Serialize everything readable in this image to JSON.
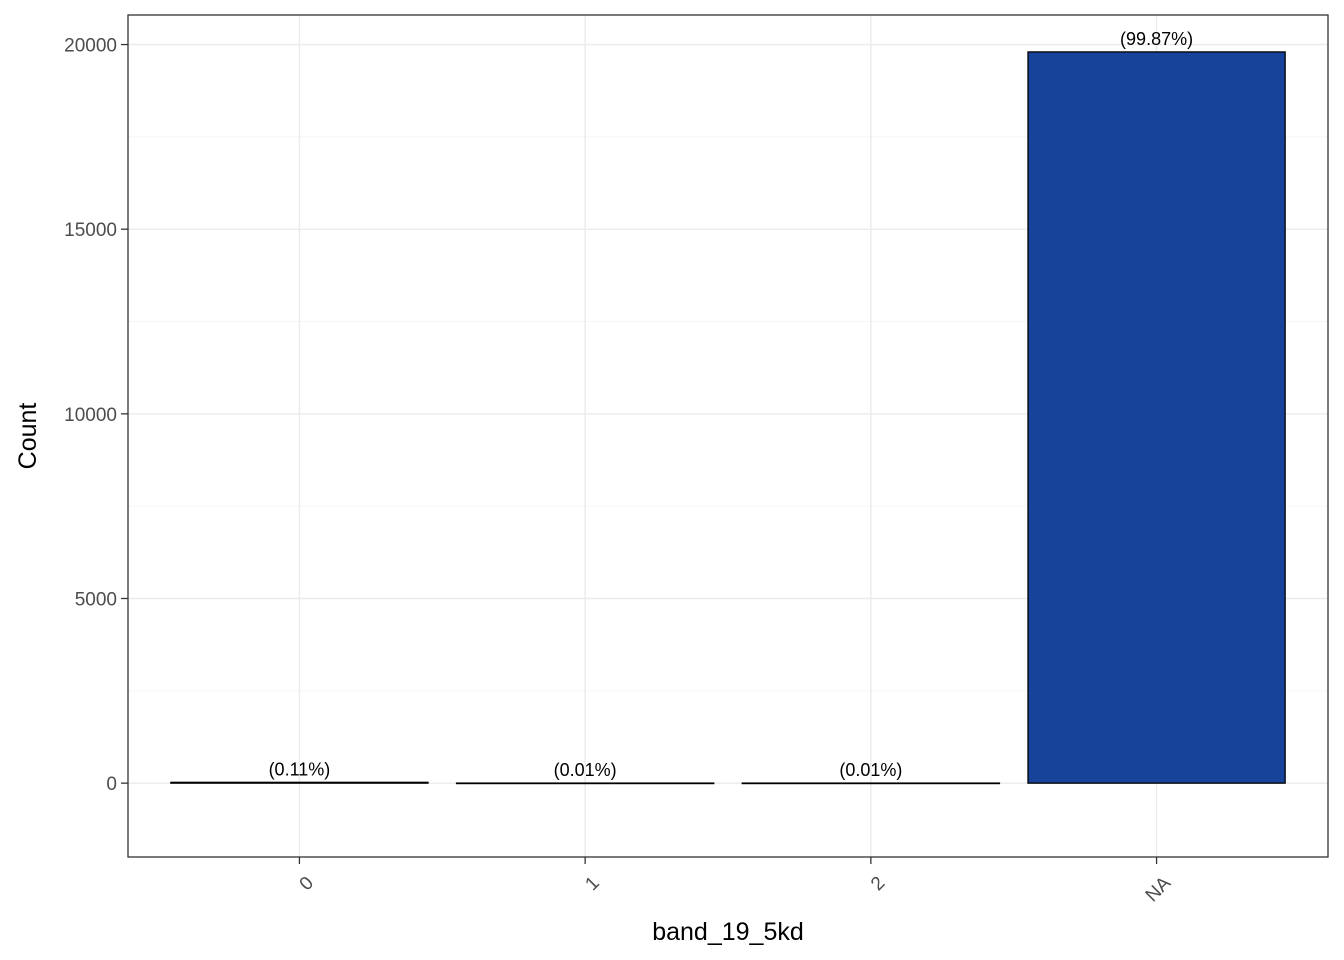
{
  "chart_data": {
    "type": "bar",
    "categories": [
      "0",
      "1",
      "2",
      "NA"
    ],
    "values": [
      22,
      2,
      2,
      19800
    ],
    "data_labels": [
      "(0.11%)",
      "(0.01%)",
      "(0.01%)",
      "(99.87%)"
    ],
    "title": "",
    "xlabel": "band_19_5kd",
    "ylabel": "Count",
    "ylim": [
      -2000,
      20800
    ],
    "yticks": [
      0,
      5000,
      10000,
      15000,
      20000
    ],
    "ytick_labels": [
      "0",
      "5000",
      "10000",
      "15000",
      "20000"
    ],
    "grid": true,
    "legend": "none",
    "colors": {
      "bar_fill": "#17449A",
      "bar_outline": "#000000",
      "grid_major": "#EBEBEB",
      "grid_minor": "#F5F5F5",
      "panel_border": "#333333"
    }
  }
}
